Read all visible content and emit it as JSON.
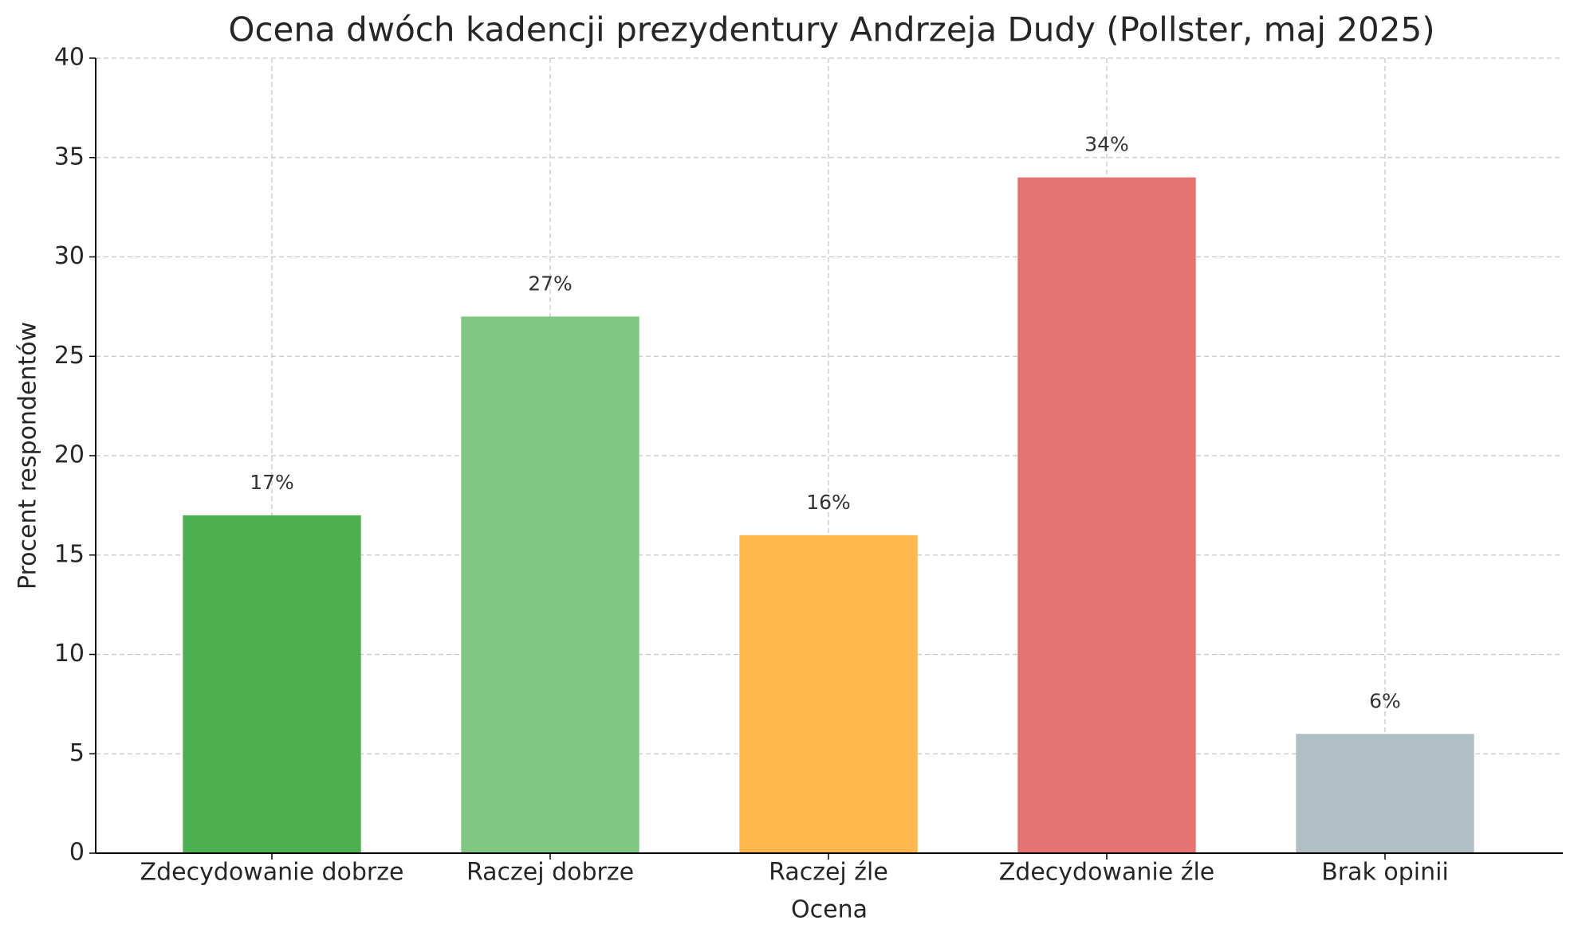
{
  "chart_data": {
    "type": "bar",
    "title": "Ocena dwóch kadencji prezydentury Andrzeja Dudy (Pollster, maj 2025)",
    "xlabel": "Ocena",
    "ylabel": "Procent respondentów",
    "categories": [
      "Zdecydowanie dobrze",
      "Raczej dobrze",
      "Raczej źle",
      "Zdecydowanie źle",
      "Brak opinii"
    ],
    "values": [
      17,
      27,
      16,
      34,
      6
    ],
    "value_labels": [
      "17%",
      "27%",
      "16%",
      "34%",
      "6%"
    ],
    "colors": [
      "#4caf50",
      "#81c784",
      "#ffb74d",
      "#e57373",
      "#b0bec5"
    ],
    "ylim": [
      0,
      40
    ],
    "yticks": [
      0,
      5,
      10,
      15,
      20,
      25,
      30,
      35,
      40
    ],
    "grid": true
  }
}
